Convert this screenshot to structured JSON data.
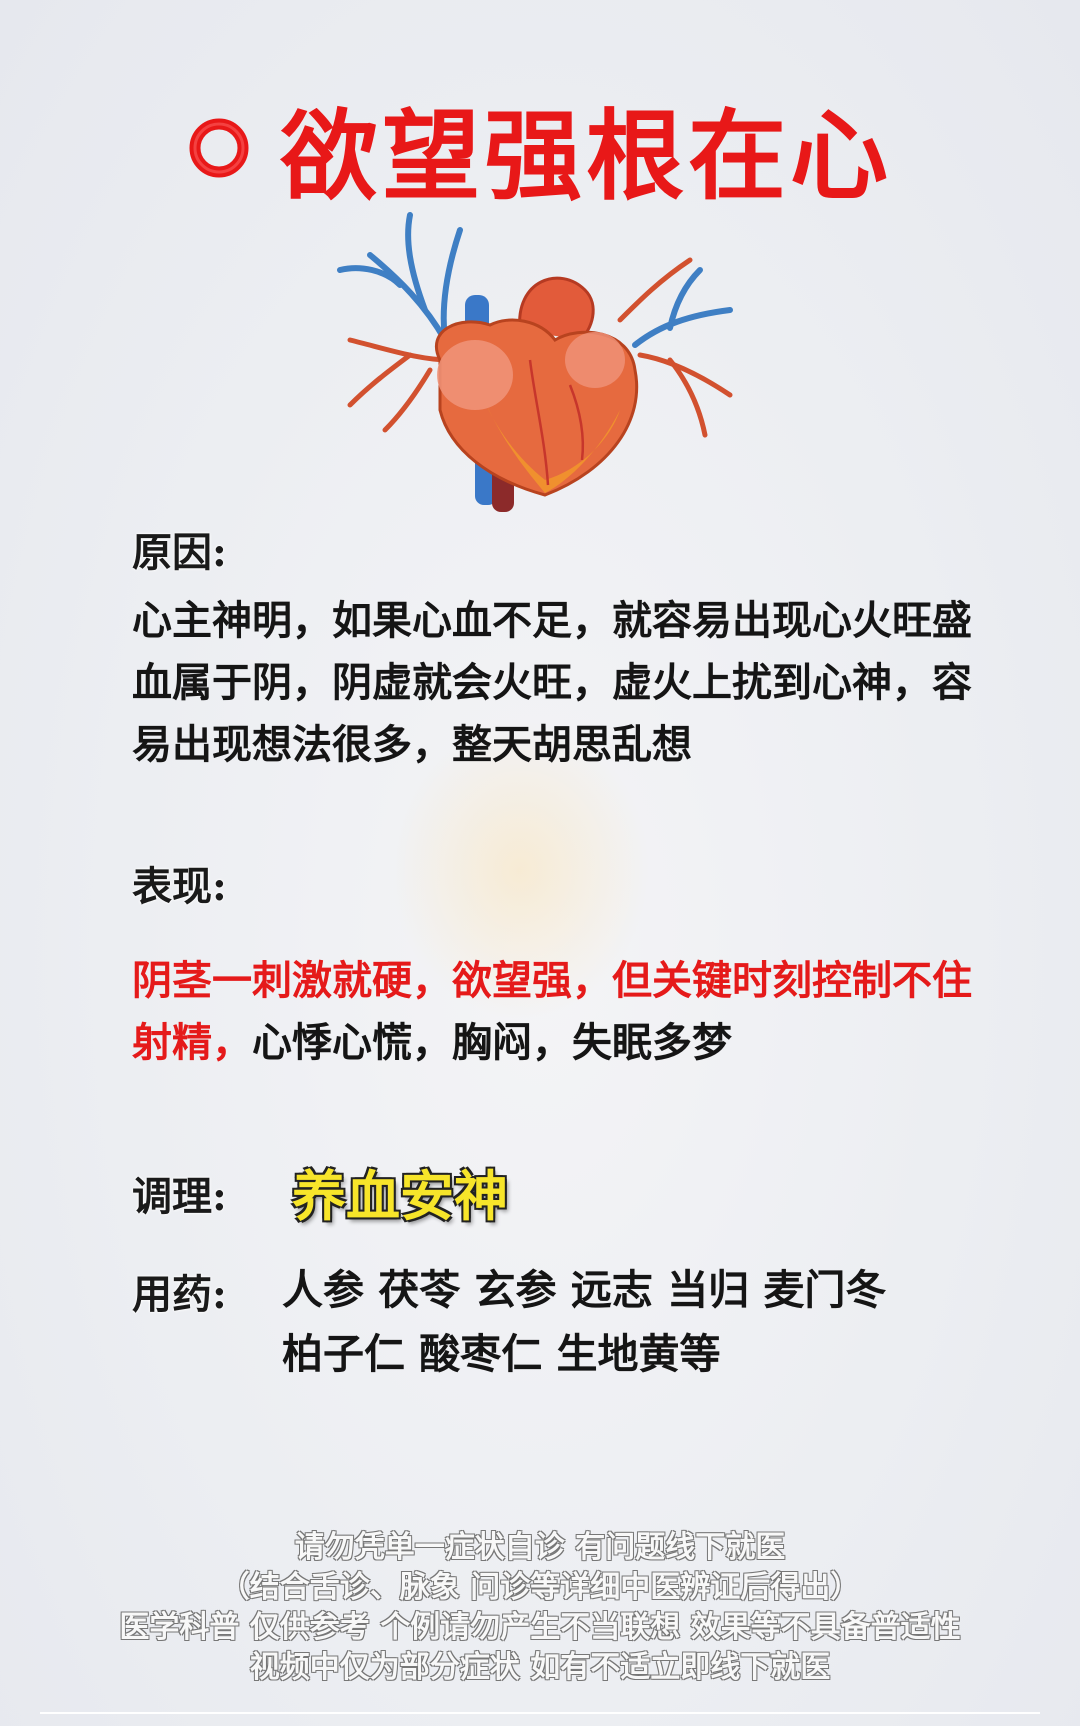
{
  "title": "欲望强根在心",
  "cause": {
    "label": "原因:",
    "text": "心主神明，如果心血不足，就容易出现心火旺盛血属于阴，阴虚就会火旺，虚火上扰到心神，容易出现想法很多，整天胡思乱想"
  },
  "symptoms": {
    "label": "表现:",
    "red_text": "阴茎一刺激就硬，欲望强，但关键时刻控制不住射精，",
    "text": "心悸心慌，胸闷，失眠多梦"
  },
  "treatment": {
    "label": "调理:",
    "value": "养血安神"
  },
  "medicine": {
    "label": "用药:",
    "line1": "人参 茯苓 玄参 远志 当归 麦门冬",
    "line2": "柏子仁 酸枣仁 生地黄等"
  },
  "disclaimer": [
    "请勿凭单一症状自诊 有问题线下就医",
    "（结合舌诊、脉象 问诊等详细中医辨证后得出）",
    "医学科普 仅供参考 个例请勿产生不当联想 效果等不具备普适性",
    "视频中仅为部分症状 如有不适立即线下就医"
  ],
  "colors": {
    "title": "#e81818",
    "accent_red": "#e51a1a",
    "highlight_yellow": "#f7e52a"
  }
}
